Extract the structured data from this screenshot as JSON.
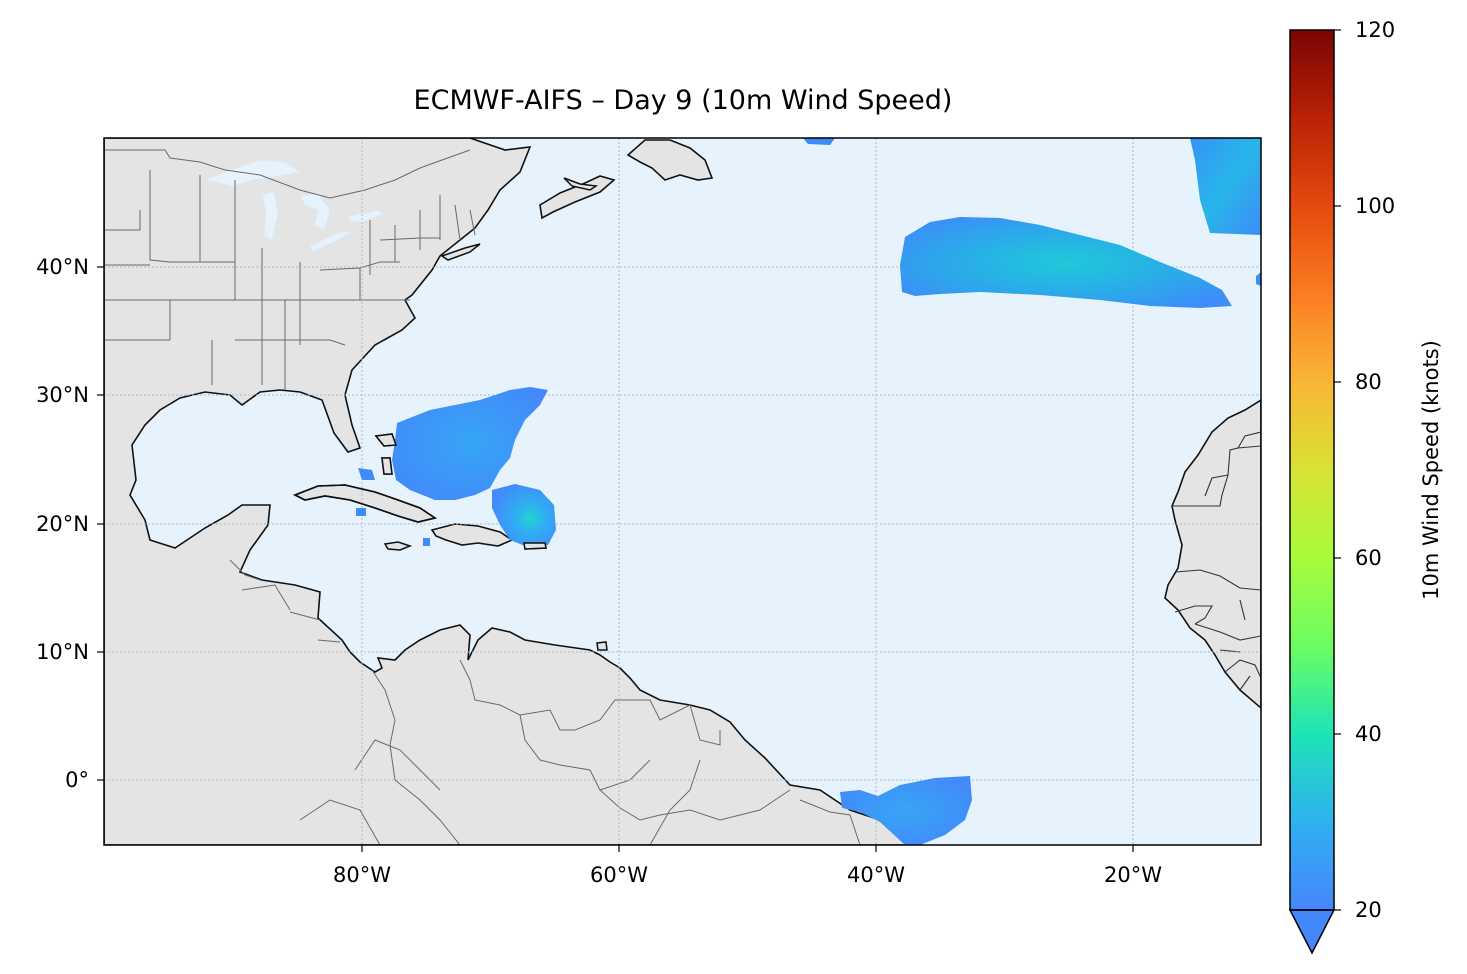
{
  "title": "ECMWF-AIFS – Day 9 (10m Wind Speed)",
  "map": {
    "lon_range": [
      -100,
      -10
    ],
    "lat_range": [
      -5,
      50
    ],
    "x_ticks": [
      {
        "value": -80,
        "label": "80°W"
      },
      {
        "value": -60,
        "label": "60°W"
      },
      {
        "value": -40,
        "label": "40°W"
      },
      {
        "value": -20,
        "label": "20°W"
      }
    ],
    "y_ticks": [
      {
        "value": 40,
        "label": "40°N"
      },
      {
        "value": 30,
        "label": "30°N"
      },
      {
        "value": 20,
        "label": "20°N"
      },
      {
        "value": 10,
        "label": "10°N"
      },
      {
        "value": 0,
        "label": "0°"
      }
    ],
    "gridlines": true,
    "colors": {
      "ocean": "#e6f3fd",
      "land": "#e4e4e4",
      "coast": "#111111",
      "borders": "#666666",
      "lakes": "#e6f3fd"
    }
  },
  "colorbar": {
    "label": "10m Wind Speed (knots)",
    "range": [
      20,
      120
    ],
    "extend": "min",
    "colormap": "turbo",
    "ticks": [
      {
        "value": 20,
        "label": "20"
      },
      {
        "value": 40,
        "label": "40"
      },
      {
        "value": 60,
        "label": "60"
      },
      {
        "value": 80,
        "label": "80"
      },
      {
        "value": 100,
        "label": "100"
      },
      {
        "value": 120,
        "label": "120"
      }
    ]
  },
  "wind_regions": [
    {
      "name": "north-atlantic-jet",
      "peak_knots": 30
    },
    {
      "name": "western-atlantic-bahamas",
      "peak_knots": 25
    },
    {
      "name": "east-of-hispaniola-storm",
      "peak_knots": 32
    },
    {
      "name": "northeast-atlantic-edge",
      "peak_knots": 30
    },
    {
      "name": "equatorial-atlantic",
      "peak_knots": 23
    }
  ]
}
